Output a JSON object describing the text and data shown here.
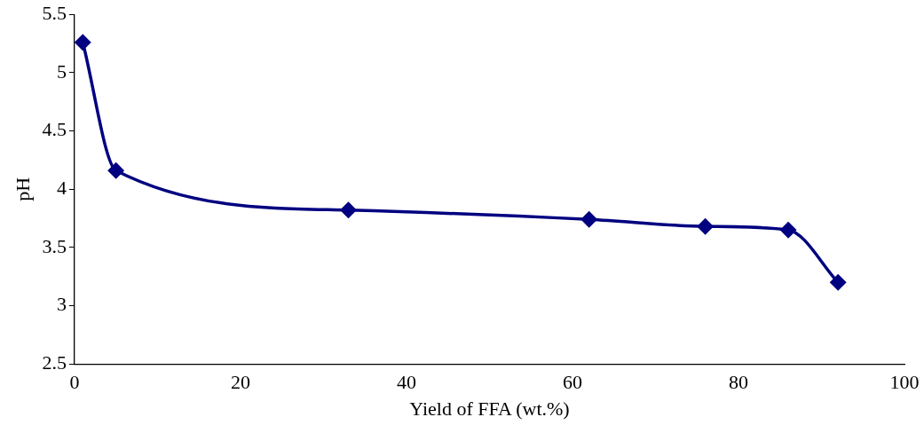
{
  "chart_data": {
    "type": "line",
    "xlabel": "Yield of FFA (wt.%)",
    "ylabel": "pH",
    "x": [
      1,
      5,
      33,
      62,
      76,
      86,
      92
    ],
    "series": [
      {
        "color": "#000080",
        "values": [
          5.26,
          4.16,
          3.82,
          3.74,
          3.68,
          3.65,
          3.2
        ]
      }
    ],
    "xlim": [
      0,
      100
    ],
    "xticks": [
      0,
      20,
      40,
      60,
      80,
      100
    ],
    "ylim": [
      2.5,
      5.5
    ],
    "yticks": [
      2.5,
      3,
      3.5,
      4,
      4.5,
      5,
      5.5
    ],
    "grid": false,
    "legend": false,
    "marker": "diamond",
    "line_style": "solid"
  }
}
